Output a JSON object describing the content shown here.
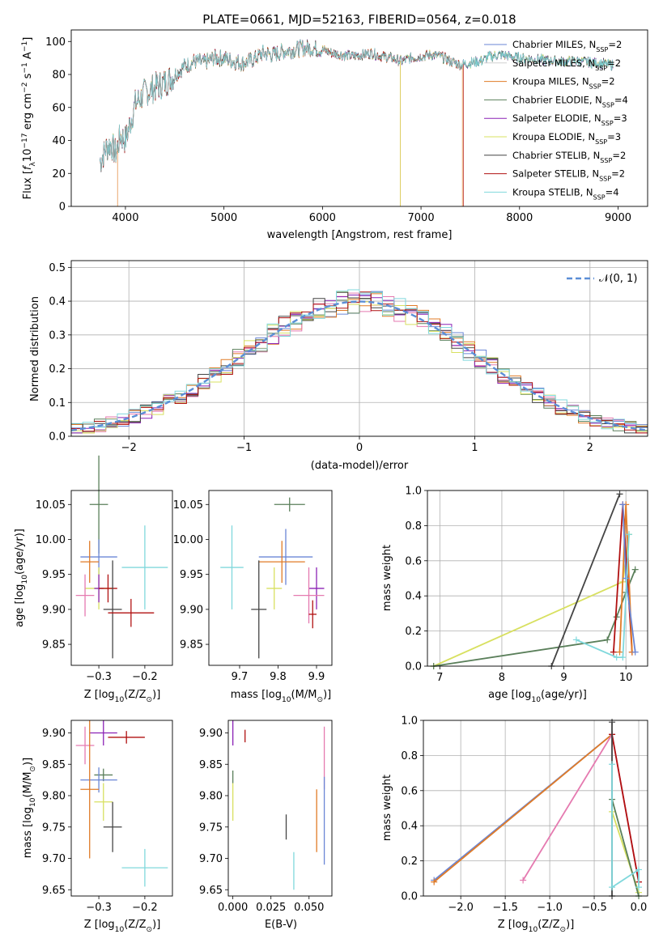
{
  "figure_title": "PLATE=0661, MJD=52163, FIBERID=0564, z=0.018",
  "colors": {
    "Chabrier MILES": "#6a86d6",
    "Salpeter MILES": "#d0d0d0",
    "Kroupa MILES": "#e07b27",
    "Chabrier ELODIE": "#5a7f5a",
    "Salpeter ELODIE": "#8b22b5",
    "Kroupa ELODIE": "#d8e060",
    "Chabrier STELIB": "#444444",
    "Salpeter STELIB": "#b01010",
    "Kroupa STELIB": "#80d8dc",
    "pink": "#e57ab0",
    "gauss": "#5b8ed6"
  },
  "chart_data": [
    {
      "id": "spectrum",
      "type": "line",
      "title": "PLATE=0661, MJD=52163, FIBERID=0564, z=0.018",
      "xlabel": "wavelength [Angstrom, rest frame]",
      "ylabel": "Flux [f_λ 10^-17 erg cm^-2 s^-1 A^-1]",
      "xlim": [
        3450,
        9300
      ],
      "ylim": [
        0,
        107
      ],
      "xticks": [
        "4000",
        "5000",
        "6000",
        "7000",
        "8000",
        "9000"
      ],
      "yticks": [
        "0",
        "20",
        "40",
        "60",
        "80",
        "100"
      ],
      "x": [
        3750,
        3800,
        3850,
        3900,
        3950,
        4000,
        4100,
        4200,
        4300,
        4400,
        4500,
        4600,
        4700,
        4800,
        4900,
        5000,
        5100,
        5200,
        5300,
        5400,
        5500,
        5600,
        5700,
        5800,
        5900,
        6000,
        6100,
        6200,
        6300,
        6400,
        6500,
        6600,
        6700,
        6800,
        6900,
        7000,
        7100,
        7200,
        7300,
        7400,
        7500,
        7600,
        7700,
        7800,
        7900,
        8000,
        8200,
        8400,
        8600,
        8800,
        8900
      ],
      "y": [
        28,
        35,
        38,
        32,
        43,
        40,
        62,
        69,
        72,
        75,
        80,
        85,
        88,
        87,
        90,
        90,
        88,
        87,
        89,
        93,
        92,
        94,
        95,
        96,
        96,
        95,
        93,
        92,
        91,
        92,
        93,
        91,
        90,
        88,
        90,
        91,
        92,
        91,
        88,
        86,
        87,
        88,
        91,
        92,
        91,
        90,
        89,
        88,
        88,
        87,
        86
      ],
      "legend": [
        "Chabrier MILES, N$_{SSP}$=2",
        "Salpeter MILES, N$_{SSP}$=2",
        "Kroupa MILES, N$_{SSP}$=2",
        "Chabrier ELODIE, N$_{SSP}$=4",
        "Salpeter ELODIE, N$_{SSP}$=3",
        "Kroupa ELODIE, N$_{SSP}$=3",
        "Chabrier STELIB, N$_{SSP}$=2",
        "Salpeter STELIB, N$_{SSP}$=2",
        "Kroupa STELIB, N$_{SSP}$=4"
      ],
      "legend_location": "upper-right"
    },
    {
      "id": "residuals",
      "type": "histogram",
      "xlabel": "(data-model)/error",
      "ylabel": "Normed distribution",
      "xlim": [
        -2.5,
        2.5
      ],
      "ylim": [
        0,
        0.52
      ],
      "xticks": [
        "−2",
        "−1",
        "0",
        "1",
        "2"
      ],
      "yticks": [
        "0.0",
        "0.1",
        "0.2",
        "0.3",
        "0.4",
        "0.5"
      ],
      "grid": true,
      "bin_width": 0.1,
      "legend": [
        "$\\mathcal{N}(0,1)$"
      ],
      "legend_location": "upper-right"
    },
    {
      "id": "age-vs-z",
      "type": "errorbar",
      "xlabel": "Z [log$_{10}$(Z/Z$_\\odot$)]",
      "ylabel": "age  [log$_{10}$(age/yr)]",
      "xlim": [
        -0.36,
        -0.14
      ],
      "ylim": [
        9.82,
        10.07
      ],
      "xticks": [
        "−0.3",
        "−0.2"
      ],
      "yticks": [
        "9.85",
        "9.90",
        "9.95",
        "10.00",
        "10.05"
      ],
      "points": [
        {
          "s": "Chabrier ELODIE",
          "x": -0.3,
          "xe": 0.02,
          "y": 10.05,
          "ye": 0.07
        },
        {
          "s": "Chabrier MILES",
          "x": -0.3,
          "xe": 0.04,
          "y": 9.975,
          "ye": 0.025
        },
        {
          "s": "Kroupa MILES",
          "x": -0.32,
          "xe": 0.02,
          "y": 9.968,
          "ye": 0.03
        },
        {
          "s": "Kroupa STELIB",
          "x": -0.2,
          "xe": 0.05,
          "y": 9.96,
          "ye": 0.06
        },
        {
          "s": "Kroupa ELODIE",
          "x": -0.3,
          "xe": 0.03,
          "y": 9.93,
          "ye": 0.03
        },
        {
          "s": "Salpeter ELODIE",
          "x": -0.3,
          "xe": 0.01,
          "y": 9.93,
          "ye": 0.02
        },
        {
          "s": "Salpeter STELIB",
          "x": -0.28,
          "xe": 0.02,
          "y": 9.93,
          "ye": 0.02
        },
        {
          "s": "pink",
          "x": -0.33,
          "xe": 0.02,
          "y": 9.92,
          "ye": 0.03
        },
        {
          "s": "Chabrier STELIB",
          "x": -0.27,
          "xe": 0.02,
          "y": 9.9,
          "ye": 0.07
        },
        {
          "s": "Salpeter STELIB",
          "x": -0.23,
          "xe": 0.05,
          "y": 9.895,
          "ye": 0.02
        }
      ]
    },
    {
      "id": "age-vs-mass",
      "type": "errorbar",
      "xlabel": "mass [log$_{10}$(M/M$_\\odot$)]",
      "ylabel": "",
      "xlim": [
        9.62,
        9.94
      ],
      "ylim": [
        9.82,
        10.07
      ],
      "xticks": [
        "9.7",
        "9.8",
        "9.9"
      ],
      "yticks": [
        "9.85",
        "9.90",
        "9.95",
        "10.00",
        "10.05"
      ],
      "points": [
        {
          "s": "Chabrier ELODIE",
          "x": 9.83,
          "xe": 0.04,
          "y": 10.05,
          "ye": 0.01
        },
        {
          "s": "Chabrier MILES",
          "x": 9.82,
          "xe": 0.07,
          "y": 9.975,
          "ye": 0.04
        },
        {
          "s": "Kroupa MILES",
          "x": 9.81,
          "xe": 0.06,
          "y": 9.968,
          "ye": 0.03
        },
        {
          "s": "Kroupa STELIB",
          "x": 9.68,
          "xe": 0.03,
          "y": 9.96,
          "ye": 0.06
        },
        {
          "s": "Kroupa ELODIE",
          "x": 9.79,
          "xe": 0.02,
          "y": 9.93,
          "ye": 0.03
        },
        {
          "s": "Salpeter ELODIE",
          "x": 9.9,
          "xe": 0.02,
          "y": 9.93,
          "ye": 0.03
        },
        {
          "s": "pink",
          "x": 9.88,
          "xe": 0.04,
          "y": 9.92,
          "ye": 0.04
        },
        {
          "s": "Chabrier STELIB",
          "x": 9.75,
          "xe": 0.02,
          "y": 9.9,
          "ye": 0.07
        },
        {
          "s": "Salpeter STELIB",
          "x": 9.89,
          "xe": 0.01,
          "y": 9.893,
          "ye": 0.02
        }
      ]
    },
    {
      "id": "weight-vs-age",
      "type": "line",
      "xlabel": "age  [log$_{10}$(age/yr)]",
      "ylabel": "mass weight",
      "xlim": [
        6.8,
        10.35
      ],
      "ylim": [
        0,
        1.0
      ],
      "xticks": [
        "7",
        "8",
        "9",
        "10"
      ],
      "yticks": [
        "0.0",
        "0.2",
        "0.4",
        "0.6",
        "0.8",
        "1.0"
      ],
      "grid": true,
      "series": [
        {
          "s": "Kroupa ELODIE",
          "x": [
            6.9,
            9.95,
            10.05
          ],
          "y": [
            0.0,
            0.48,
            0.75
          ]
        },
        {
          "s": "Chabrier ELODIE",
          "x": [
            6.9,
            9.7,
            9.85,
            10.0,
            10.15
          ],
          "y": [
            0.0,
            0.15,
            0.28,
            0.42,
            0.55
          ]
        },
        {
          "s": "Chabrier STELIB",
          "x": [
            8.8,
            9.9
          ],
          "y": [
            0.0,
            0.98
          ]
        },
        {
          "s": "Salpeter STELIB",
          "x": [
            9.8,
            9.95,
            10.1
          ],
          "y": [
            0.08,
            0.92,
            0.08
          ]
        },
        {
          "s": "Kroupa MILES",
          "x": [
            9.9,
            10.0,
            10.1
          ],
          "y": [
            0.08,
            0.92,
            0.08
          ]
        },
        {
          "s": "Chabrier MILES",
          "x": [
            9.95,
            10.0,
            10.15
          ],
          "y": [
            0.92,
            0.5,
            0.08
          ]
        },
        {
          "s": "Kroupa STELIB",
          "x": [
            9.2,
            9.85,
            9.95,
            10.05
          ],
          "y": [
            0.15,
            0.05,
            0.05,
            0.75
          ]
        }
      ]
    },
    {
      "id": "mass-vs-z",
      "type": "errorbar",
      "xlabel": "Z [log$_{10}$(Z/Z$_\\odot$)]",
      "ylabel": "mass [log$_{10}$(M/M$_\\odot$)]",
      "xlim": [
        -0.36,
        -0.14
      ],
      "ylim": [
        9.64,
        9.92
      ],
      "xticks": [
        "−0.3",
        "−0.2"
      ],
      "yticks": [
        "9.65",
        "9.70",
        "9.75",
        "9.80",
        "9.85",
        "9.90"
      ],
      "points": [
        {
          "s": "Salpeter ELODIE",
          "x": -0.29,
          "xe": 0.03,
          "y": 9.9,
          "ye": 0.02
        },
        {
          "s": "Salpeter STELIB",
          "x": -0.24,
          "xe": 0.04,
          "y": 9.893,
          "ye": 0.01
        },
        {
          "s": "pink",
          "x": -0.33,
          "xe": 0.02,
          "y": 9.88,
          "ye": 0.03
        },
        {
          "s": "Chabrier ELODIE",
          "x": -0.29,
          "xe": 0.02,
          "y": 9.833,
          "ye": 0.01
        },
        {
          "s": "Chabrier MILES",
          "x": -0.3,
          "xe": 0.04,
          "y": 9.825,
          "ye": 0.02
        },
        {
          "s": "Kroupa MILES",
          "x": -0.32,
          "xe": 0.02,
          "y": 9.81,
          "ye": 0.11
        },
        {
          "s": "Kroupa ELODIE",
          "x": -0.29,
          "xe": 0.02,
          "y": 9.79,
          "ye": 0.03
        },
        {
          "s": "Chabrier STELIB",
          "x": -0.27,
          "xe": 0.02,
          "y": 9.75,
          "ye": 0.04
        },
        {
          "s": "Kroupa STELIB",
          "x": -0.2,
          "xe": 0.05,
          "y": 9.685,
          "ye": 0.03
        }
      ]
    },
    {
      "id": "mass-vs-ebv",
      "type": "errorbar",
      "xlabel": "E(B-V)",
      "ylabel": "",
      "xlim": [
        -0.003,
        0.065
      ],
      "ylim": [
        9.64,
        9.92
      ],
      "xticks": [
        "0.000",
        "0.025",
        "0.050"
      ],
      "yticks": [
        "9.65",
        "9.70",
        "9.75",
        "9.80",
        "9.85",
        "9.90"
      ],
      "points": [
        {
          "s": "Salpeter ELODIE",
          "x": 0.0,
          "xe": 0,
          "y": 9.9,
          "ye": 0.02
        },
        {
          "s": "Salpeter STELIB",
          "x": 0.008,
          "xe": 0,
          "y": 9.895,
          "ye": 0.01
        },
        {
          "s": "Chabrier ELODIE",
          "x": 0.0,
          "xe": 0,
          "y": 9.83,
          "ye": 0.01
        },
        {
          "s": "Kroupa ELODIE",
          "x": 0.0,
          "xe": 0,
          "y": 9.79,
          "ye": 0.03
        },
        {
          "s": "Chabrier STELIB",
          "x": 0.035,
          "xe": 0,
          "y": 9.75,
          "ye": 0.02
        },
        {
          "s": "Kroupa STELIB",
          "x": 0.04,
          "xe": 0,
          "y": 9.68,
          "ye": 0.03
        },
        {
          "s": "Kroupa MILES",
          "x": 0.055,
          "xe": 0,
          "y": 9.76,
          "ye": 0.05
        },
        {
          "s": "pink",
          "x": 0.06,
          "xe": 0,
          "y": 9.86,
          "ye": 0.05
        },
        {
          "s": "Chabrier MILES",
          "x": 0.06,
          "xe": 0,
          "y": 9.76,
          "ye": 0.07
        }
      ]
    },
    {
      "id": "weight-vs-z",
      "type": "line",
      "xlabel": "Z [log$_{10}$(Z/Z$_\\odot$)]",
      "ylabel": "mass weight",
      "xlim": [
        -2.42,
        0.1
      ],
      "ylim": [
        0,
        1.0
      ],
      "xticks": [
        "−2.0",
        "−1.5",
        "−1.0",
        "−0.5",
        "0.0"
      ],
      "yticks": [
        "0.0",
        "0.2",
        "0.4",
        "0.6",
        "0.8",
        "1.0"
      ],
      "grid": true,
      "series": [
        {
          "s": "Chabrier MILES",
          "x": [
            -2.3,
            -0.3
          ],
          "y": [
            0.09,
            0.92
          ]
        },
        {
          "s": "Kroupa MILES",
          "x": [
            -2.3,
            -0.3
          ],
          "y": [
            0.08,
            0.92
          ]
        },
        {
          "s": "pink",
          "x": [
            -1.3,
            -0.3,
            0.0
          ],
          "y": [
            0.09,
            0.92,
            0.08
          ]
        },
        {
          "s": "Salpeter STELIB",
          "x": [
            -0.3,
            0.0
          ],
          "y": [
            0.92,
            0.08
          ]
        },
        {
          "s": "Chabrier STELIB",
          "x": [
            -0.3,
            -0.3
          ],
          "y": [
            0.0,
            0.99
          ]
        },
        {
          "s": "Kroupa ELODIE",
          "x": [
            -0.3,
            0.0
          ],
          "y": [
            0.48,
            0.02
          ]
        },
        {
          "s": "Chabrier ELODIE",
          "x": [
            -0.3,
            0.0
          ],
          "y": [
            0.55,
            0.0
          ]
        },
        {
          "s": "Kroupa STELIB",
          "x": [
            -0.3,
            -0.3,
            0.0,
            0.0
          ],
          "y": [
            0.75,
            0.05,
            0.15,
            0.05
          ]
        }
      ]
    }
  ]
}
